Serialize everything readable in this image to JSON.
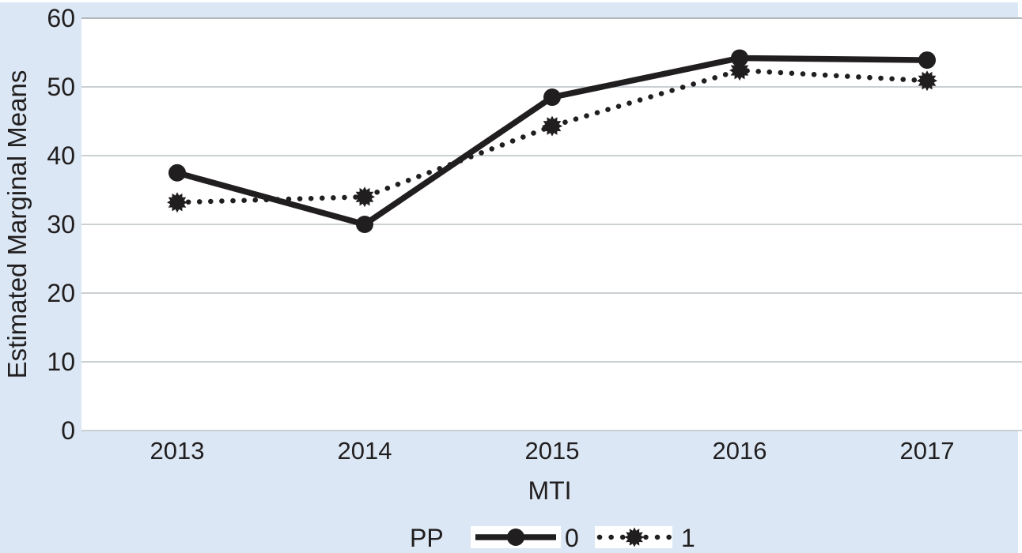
{
  "figure": {
    "background_color": "#dbe7f4",
    "plot_background": "#ffffff",
    "gridline_color": "#cbd0d3",
    "frame_line_color": "#b2b7bb",
    "series_color": "#211e1f",
    "text_color": "#211e1f",
    "legend_swatch_background": "#ffffff"
  },
  "chart_data": {
    "type": "line",
    "title": "",
    "xlabel": "MTI",
    "ylabel": "Estimated Marginal Means",
    "categories": [
      "2013",
      "2014",
      "2015",
      "2016",
      "2017"
    ],
    "yticks": [
      0,
      10,
      20,
      30,
      40,
      50,
      60
    ],
    "ylim": [
      0,
      60
    ],
    "grid": "horizontal-only",
    "legend": {
      "title": "PP",
      "position": "bottom-center"
    },
    "series": [
      {
        "name": "0",
        "line_style": "solid",
        "marker": "circle",
        "values": [
          37.5,
          30.0,
          48.5,
          54.2,
          53.9
        ]
      },
      {
        "name": "1",
        "line_style": "dotted",
        "marker": "star",
        "values": [
          33.2,
          34.0,
          44.3,
          52.4,
          50.9
        ]
      }
    ]
  }
}
